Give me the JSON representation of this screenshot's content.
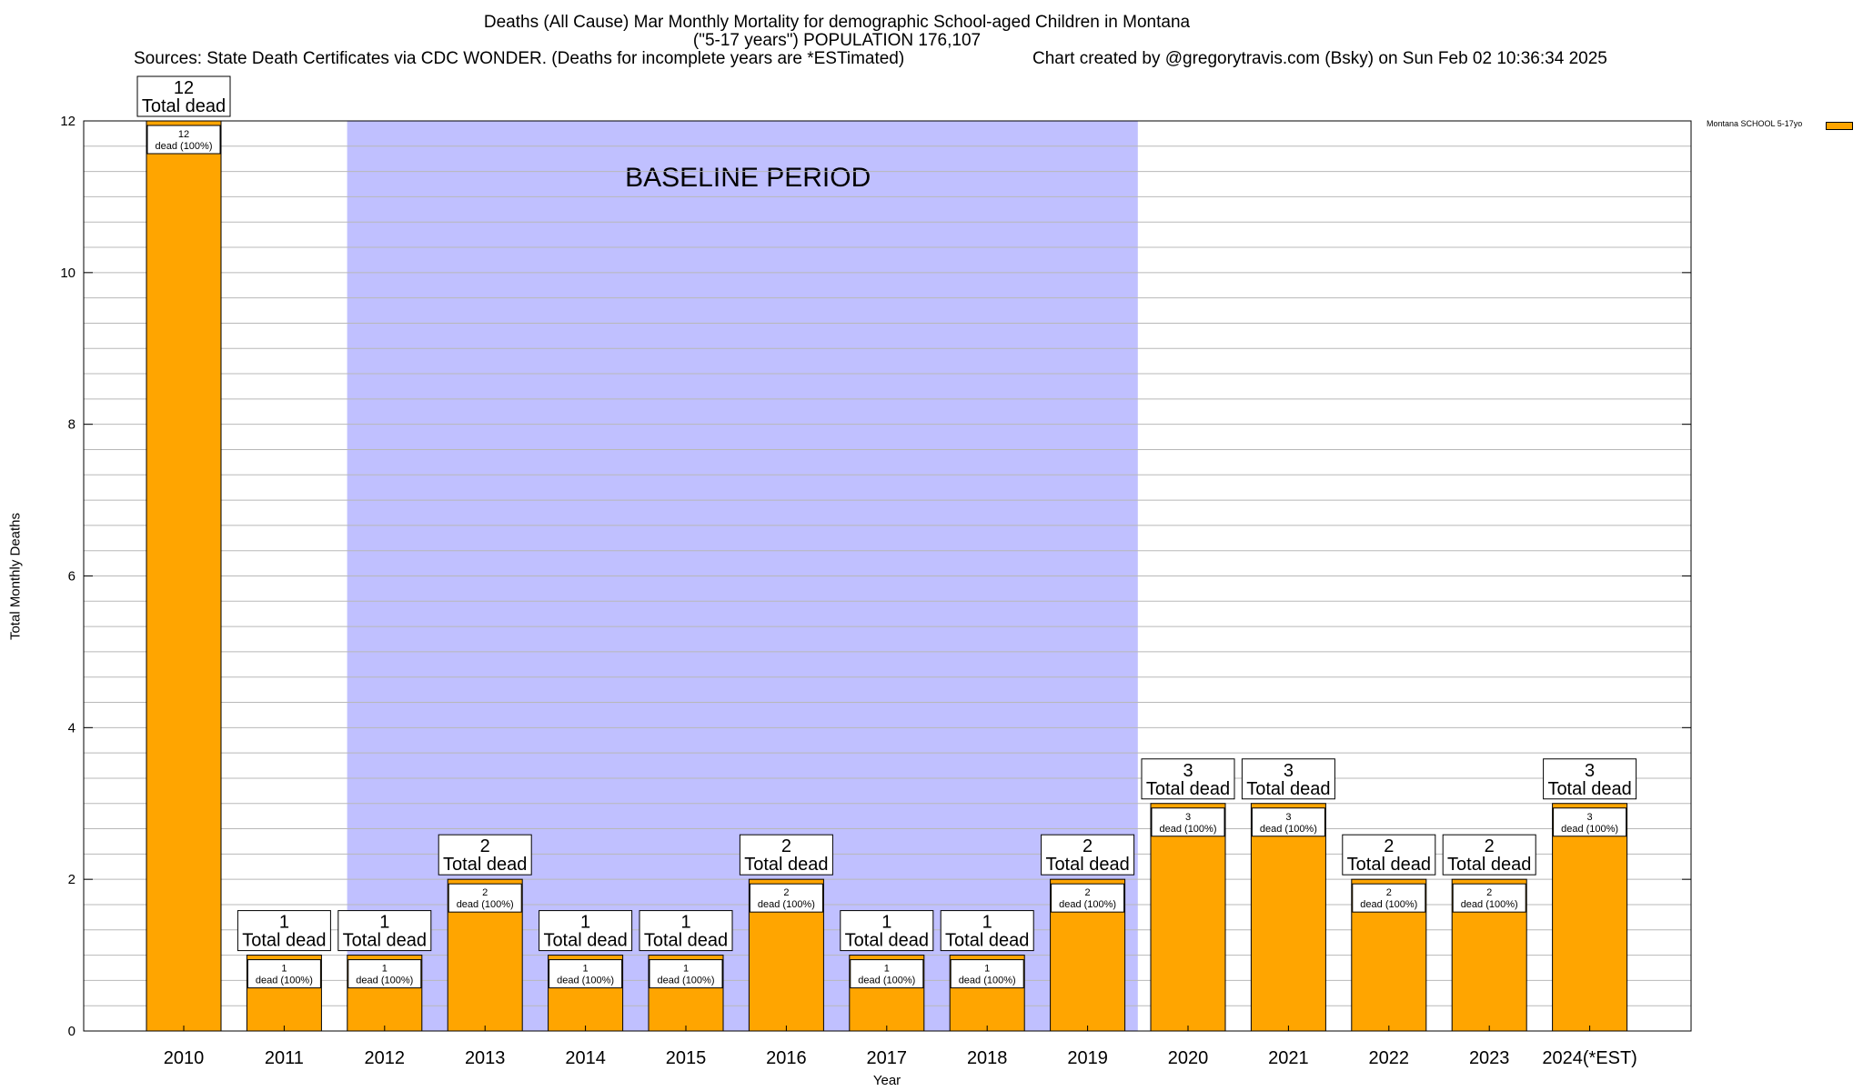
{
  "chart_data": {
    "type": "bar",
    "title": "Deaths (All Cause) Mar Monthly Mortality for demographic School-aged Children in Montana",
    "subtitle": "(\"5-17 years\") POPULATION 176,107",
    "source": "Sources: State Death Certificates via CDC WONDER. (Deaths for incomplete years are *ESTimated)",
    "credit": "Chart created by @gregorytravis.com (Bsky) on Sun Feb 02 10:36:34 2025",
    "xlabel": "Year",
    "ylabel": "Total Monthly Deaths",
    "ylim": [
      0,
      12
    ],
    "yticks": [
      0,
      2,
      4,
      6,
      8,
      10,
      12
    ],
    "categories": [
      "2010",
      "2011",
      "2012",
      "2013",
      "2014",
      "2015",
      "2016",
      "2017",
      "2018",
      "2019",
      "2020",
      "2021",
      "2022",
      "2023",
      "2024(*EST)"
    ],
    "series": [
      {
        "name": "Montana SCHOOL 5-17yo",
        "color": "#ffa500",
        "values": [
          12,
          1,
          1,
          2,
          1,
          1,
          2,
          1,
          1,
          2,
          3,
          3,
          2,
          2,
          3
        ]
      }
    ],
    "total_label_suffix": "Total dead",
    "bar_label_suffix": "dead (100%)",
    "baseline_period": {
      "label": "BASELINE PERIOD",
      "from": "2012",
      "to": "2019",
      "color": "#c0c0ff"
    },
    "grid": true,
    "legend_position": "top-right, outside plot"
  }
}
